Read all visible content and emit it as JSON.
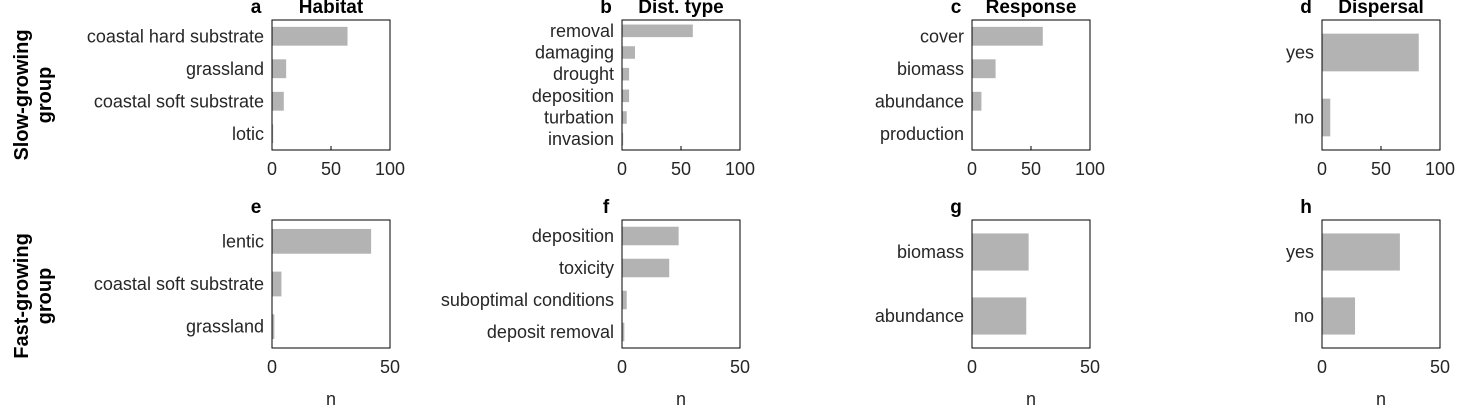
{
  "row_labels": [
    "Slow-growing group",
    "Fast-growing group"
  ],
  "chart_data": [
    {
      "type": "bar",
      "orientation": "horizontal",
      "letter": "a",
      "title": "Habitat",
      "categories": [
        "coastal hard substrate",
        "grassland",
        "coastal soft substrate",
        "lotic"
      ],
      "values": [
        64,
        12,
        10,
        1
      ],
      "xlim": [
        0,
        100
      ],
      "xticks": [
        "0",
        "50",
        "100"
      ],
      "xlabel": ""
    },
    {
      "type": "bar",
      "orientation": "horizontal",
      "letter": "b",
      "title": "Dist. type",
      "categories": [
        "removal",
        "damaging",
        "drought",
        "deposition",
        "turbation",
        "invasion"
      ],
      "values": [
        60,
        11,
        6,
        6,
        4,
        1
      ],
      "xlim": [
        0,
        100
      ],
      "xticks": [
        "0",
        "50",
        "100"
      ],
      "xlabel": ""
    },
    {
      "type": "bar",
      "orientation": "horizontal",
      "letter": "c",
      "title": "Response",
      "categories": [
        "cover",
        "biomass",
        "abundance",
        "production"
      ],
      "values": [
        60,
        20,
        8,
        0
      ],
      "xlim": [
        0,
        100
      ],
      "xticks": [
        "0",
        "50",
        "100"
      ],
      "xlabel": ""
    },
    {
      "type": "bar",
      "orientation": "horizontal",
      "letter": "d",
      "title": "Dispersal",
      "categories": [
        "yes",
        "no"
      ],
      "values": [
        82,
        7
      ],
      "xlim": [
        0,
        100
      ],
      "xticks": [
        "0",
        "50",
        "100"
      ],
      "xlabel": ""
    },
    {
      "type": "bar",
      "orientation": "horizontal",
      "letter": "e",
      "title": "",
      "categories": [
        "lentic",
        "coastal soft substrate",
        "grassland"
      ],
      "values": [
        42,
        4,
        1
      ],
      "xlim": [
        0,
        50
      ],
      "xticks": [
        "0",
        "50"
      ],
      "xlabel": "n"
    },
    {
      "type": "bar",
      "orientation": "horizontal",
      "letter": "f",
      "title": "",
      "categories": [
        "deposition",
        "toxicity",
        "suboptimal conditions",
        "deposit removal"
      ],
      "values": [
        24,
        20,
        2,
        1
      ],
      "xlim": [
        0,
        50
      ],
      "xticks": [
        "0",
        "50"
      ],
      "xlabel": "n"
    },
    {
      "type": "bar",
      "orientation": "horizontal",
      "letter": "g",
      "title": "",
      "categories": [
        "biomass",
        "abundance"
      ],
      "values": [
        24,
        23
      ],
      "xlim": [
        0,
        50
      ],
      "xticks": [
        "0",
        "50"
      ],
      "xlabel": "n"
    },
    {
      "type": "bar",
      "orientation": "horizontal",
      "letter": "h",
      "title": "",
      "categories": [
        "yes",
        "no"
      ],
      "values": [
        33,
        14
      ],
      "xlim": [
        0,
        50
      ],
      "xticks": [
        "0",
        "50"
      ],
      "xlabel": "n"
    }
  ],
  "colors": {
    "bar": "#b3b3b3",
    "axis": "#000000",
    "text": "#262626"
  }
}
